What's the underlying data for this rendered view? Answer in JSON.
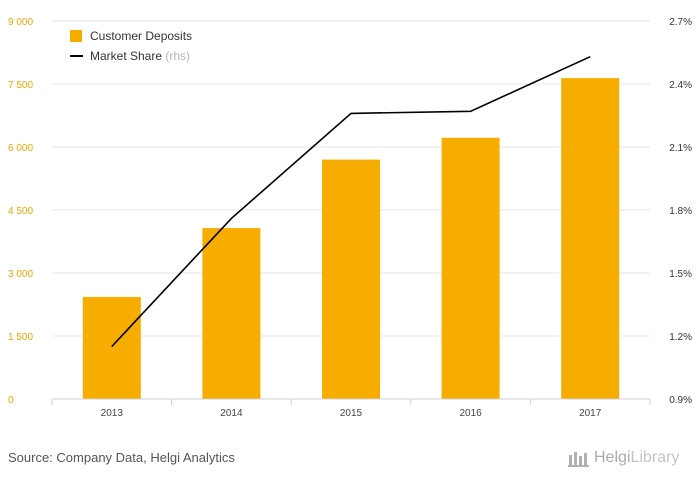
{
  "chart_data": {
    "type": "bar",
    "categories": [
      "2013",
      "2014",
      "2015",
      "2016",
      "2017"
    ],
    "series": [
      {
        "name": "Customer Deposits",
        "kind": "bar",
        "axis": "left",
        "color": "#f7ac00",
        "values": [
          2430,
          4070,
          5700,
          6220,
          7640
        ]
      },
      {
        "name": "Market Share",
        "name_suffix": "(rhs)",
        "kind": "line",
        "axis": "right",
        "color": "#000000",
        "values": [
          1.15,
          1.76,
          2.26,
          2.27,
          2.53
        ]
      }
    ],
    "left_axis": {
      "ylim": [
        0,
        9000
      ],
      "ticks": [
        0,
        1500,
        3000,
        4500,
        6000,
        7500,
        9000
      ],
      "tick_labels": [
        "0",
        "1 500",
        "3 000",
        "4 500",
        "6 000",
        "7 500",
        "9 000"
      ],
      "color": "#f0a500"
    },
    "right_axis": {
      "ylim": [
        0.9,
        2.7
      ],
      "ticks": [
        0.9,
        1.2,
        1.5,
        1.8,
        2.1,
        2.4,
        2.7
      ],
      "tick_labels": [
        "0.9%",
        "1.2%",
        "1.5%",
        "1.8%",
        "2.1%",
        "2.4%",
        "2.7%"
      ]
    },
    "grid": true,
    "legend_position": "top-left",
    "title": "",
    "xlabel": "",
    "ylabel": ""
  },
  "footer": {
    "source": "Source: Company Data, Helgi Analytics",
    "logo_brand": "Helgi",
    "logo_suffix": "Library"
  }
}
